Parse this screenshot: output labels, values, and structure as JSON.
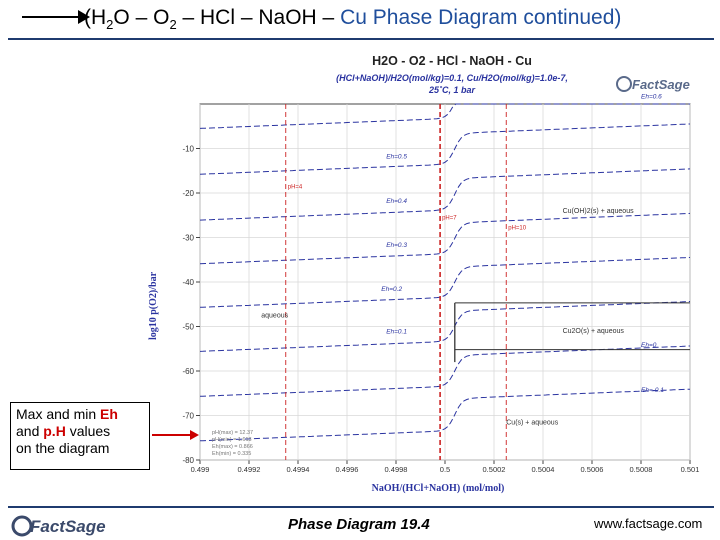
{
  "slide": {
    "title_open": "(H",
    "title_sub1": "2",
    "title_mid1": "O – O",
    "title_sub2": "2",
    "title_mid2": " – HCl – Na",
    "title_oh": "OH",
    "title_mid3": " – ",
    "title_cu": "Cu",
    "title_rest": " Phase Diagram continued)",
    "footer_center": "Phase Diagram  19.4",
    "footer_url": "www.factsage.com",
    "logo_text": "FactSage"
  },
  "callout": {
    "line1_pre": "Max and min ",
    "line1_hl": "Eh",
    "line2_pre": "and ",
    "line2_hl": "p.H",
    "line2_post": " values",
    "line3": "on the diagram"
  },
  "colors": {
    "accent": "#1f3b6f",
    "grid": "#d9d9d9",
    "eh_line": "#2a33a0",
    "ph_line": "#cc2222",
    "boundary": "#333333",
    "highlight": "#cc0000"
  },
  "chart_data": {
    "type": "line",
    "title": "H2O - O2 - HCl - NaOH - Cu",
    "subtitle": "(HCl+NaOH)/H2O(mol/kg)=0.1, Cu/H2O(mol/kg)=1.0e-7,",
    "subtitle2": "25˚C, 1 bar",
    "xlabel": "NaOH/(HCl+NaOH) (mol/mol)",
    "ylabel": "log10 p(O2)/bar",
    "xlim": [
      0.499,
      0.501
    ],
    "ylim": [
      -80,
      0
    ],
    "x_ticks": [
      "0.499",
      "0.4992",
      "0.4994",
      "0.4996",
      "0.4998",
      "0.5",
      "0.5002",
      "0.5004",
      "0.5006",
      "0.5008",
      "0.501"
    ],
    "y_ticks": [
      "-10",
      "-20",
      "-30",
      "-40",
      "-50",
      "-60",
      "-70",
      "-80"
    ],
    "y_tick_values": [
      -10,
      -20,
      -30,
      -40,
      -50,
      -60,
      -70,
      -80
    ],
    "x_tick_values": [
      0.499,
      0.4992,
      0.4994,
      0.4996,
      0.4998,
      0.5,
      0.5002,
      0.5004,
      0.5006,
      0.5008,
      0.501
    ],
    "eh_series": [
      {
        "name": "Eh=0.6",
        "left": -3.2,
        "right": 3.8,
        "label_x": 0.5008,
        "label_y": 1.2
      },
      {
        "name": "Eh=0.5",
        "left": -13.5,
        "right": -6.6,
        "label_x": 0.49976,
        "label_y": -12.2
      },
      {
        "name": "Eh=0.4",
        "left": -23.8,
        "right": -16.7,
        "label_x": 0.49976,
        "label_y": -22.3
      },
      {
        "name": "Eh=0.3",
        "left": -33.6,
        "right": -26.7,
        "label_x": 0.49976,
        "label_y": -32.1
      },
      {
        "name": "Eh=0.2",
        "left": -43.4,
        "right": -36.6,
        "label_x": 0.49974,
        "label_y": -42.0
      },
      {
        "name": "Eh=0.1",
        "left": -53.3,
        "right": -46.5,
        "label_x": 0.49976,
        "label_y": -51.6
      },
      {
        "name": "Eh=0",
        "left": -63.4,
        "right": -56.5,
        "label_x": 0.5008,
        "label_y": -54.6
      },
      {
        "name": "Eh=-0.1",
        "left": -73.4,
        "right": -66.2,
        "label_x": 0.5008,
        "label_y": -64.7
      }
    ],
    "ph_lines": [
      {
        "name": "pH=4",
        "x": 0.49935,
        "label_y": -19.0
      },
      {
        "name": "pH=7",
        "x": 0.49998,
        "label_y": -26.0
      },
      {
        "name": "pH=10",
        "x": 0.50025,
        "label_y": -28.2
      }
    ],
    "region_labels": [
      {
        "text": "Cu(OH)2(s) + aqueous",
        "x": 0.50048,
        "y": -24.5
      },
      {
        "text": "aqueous",
        "x": 0.49925,
        "y": -48.0
      },
      {
        "text": "Cu2O(s) + aqueous",
        "x": 0.50048,
        "y": -51.5
      },
      {
        "text": "Cu(s) + aqueous",
        "x": 0.50025,
        "y": -72.0
      }
    ],
    "boundaries": {
      "vertical_x": 0.50004,
      "cuo_top": -44.7,
      "cuo_bottom": -58.0,
      "cu2o_bottom": -55.2
    },
    "minmax": [
      {
        "label": "pH(max) = 12.37",
        "value": "12.37"
      },
      {
        "label": "pH(min) = 1.613",
        "value": "1.613"
      },
      {
        "label": "Eh(max) = 0.866",
        "value": "0.866"
      },
      {
        "label": "Eh(min) = 0.335",
        "value": "0.335"
      }
    ],
    "grid": true
  }
}
